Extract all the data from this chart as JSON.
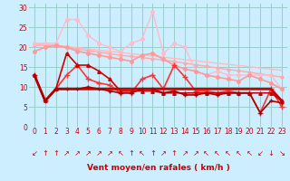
{
  "background_color": "#cceeff",
  "grid_color": "#99cccc",
  "x_labels": [
    "0",
    "1",
    "2",
    "3",
    "4",
    "5",
    "6",
    "7",
    "8",
    "9",
    "10",
    "11",
    "12",
    "13",
    "14",
    "15",
    "16",
    "17",
    "18",
    "19",
    "20",
    "21",
    "22",
    "23"
  ],
  "xlabel": "Vent moyen/en rafales ( km/h )",
  "ylim": [
    0,
    31
  ],
  "xlim": [
    -0.5,
    23.5
  ],
  "yticks": [
    0,
    5,
    10,
    15,
    20,
    25,
    30
  ],
  "lines": [
    {
      "y": [
        21,
        20.8,
        20.5,
        20.2,
        19.9,
        19.6,
        19.3,
        19.0,
        18.7,
        18.4,
        18.1,
        17.8,
        17.5,
        17.2,
        16.9,
        16.6,
        16.3,
        16.0,
        15.7,
        15.4,
        15.1,
        14.8,
        14.5,
        14.2
      ],
      "color": "#ffbbbb",
      "lw": 1.0,
      "marker": null,
      "ms": 0,
      "zorder": 2
    },
    {
      "y": [
        20.5,
        20.5,
        20.2,
        19.9,
        19.5,
        19.2,
        18.8,
        18.4,
        18.0,
        17.7,
        17.4,
        17.1,
        16.8,
        16.4,
        16.0,
        15.6,
        15.2,
        14.8,
        14.4,
        14.1,
        13.7,
        13.3,
        12.9,
        12.5
      ],
      "color": "#ffaaaa",
      "lw": 1.0,
      "marker": "o",
      "ms": 2.0,
      "zorder": 2
    },
    {
      "y": [
        21,
        21,
        21,
        27,
        27,
        23,
        21,
        20,
        19,
        21,
        22,
        29,
        18.5,
        21,
        20,
        14,
        13,
        14,
        13,
        13,
        13,
        13,
        13,
        9.5
      ],
      "color": "#ffbbcc",
      "lw": 1.0,
      "marker": "o",
      "ms": 2.5,
      "zorder": 3
    },
    {
      "y": [
        19,
        20,
        20.5,
        20,
        19,
        18.5,
        18,
        17.5,
        17,
        16.5,
        18,
        18.5,
        17,
        15.5,
        14.5,
        14,
        13,
        12.5,
        12,
        11.5,
        13,
        12,
        11,
        9.5
      ],
      "color": "#ff9999",
      "lw": 1.2,
      "marker": "o",
      "ms": 2.5,
      "zorder": 3
    },
    {
      "y": [
        13,
        6.5,
        9.5,
        13,
        15.5,
        12,
        11,
        10.5,
        8.5,
        8.5,
        12,
        13,
        9.5,
        15.5,
        12.5,
        9,
        9,
        8.5,
        9,
        8.5,
        8.5,
        3.5,
        9.5,
        5
      ],
      "color": "#ff3333",
      "lw": 1.2,
      "marker": "+",
      "ms": 4,
      "zorder": 4
    },
    {
      "y": [
        13,
        6.5,
        9.5,
        9.5,
        9.5,
        9.5,
        9.5,
        9.5,
        9.5,
        9.5,
        9.5,
        9.5,
        9.5,
        9.5,
        9.5,
        9.5,
        9.5,
        9.5,
        9.5,
        9.5,
        9.5,
        9.5,
        9.5,
        6.5
      ],
      "color": "#cc0000",
      "lw": 2.0,
      "marker": null,
      "ms": 0,
      "zorder": 4
    },
    {
      "y": [
        13,
        6.5,
        9.5,
        18.5,
        15.5,
        15.5,
        14,
        12,
        9,
        9,
        9,
        9,
        8.5,
        8.5,
        8.5,
        8.5,
        8.5,
        8.5,
        8.5,
        8.5,
        8.5,
        8.5,
        8.5,
        6.5
      ],
      "color": "#cc0000",
      "lw": 1.2,
      "marker": "^",
      "ms": 2.5,
      "zorder": 4
    },
    {
      "y": [
        13,
        6.5,
        9.5,
        9.5,
        9.5,
        10,
        9.5,
        9,
        8.5,
        8.5,
        9.5,
        9.5,
        8.5,
        9,
        8,
        8,
        8.5,
        8,
        8.5,
        8.5,
        8.5,
        3.5,
        6.5,
        6
      ],
      "color": "#aa0000",
      "lw": 1.2,
      "marker": "+",
      "ms": 3,
      "zorder": 5
    }
  ],
  "wind_arrows": [
    "↙",
    "↑",
    "↑",
    "↗",
    "↗",
    "↗",
    "↗",
    "↗",
    "↖",
    "↑",
    "↖",
    "↑",
    "↗",
    "↑",
    "↗",
    "↗",
    "↖",
    "↖",
    "↖",
    "↖",
    "↖",
    "↙",
    "↓",
    "↘"
  ],
  "tick_fontsize": 5.5,
  "xlabel_fontsize": 6.5
}
